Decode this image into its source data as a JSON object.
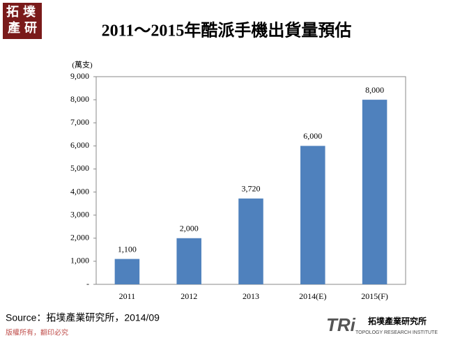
{
  "chart_data": {
    "type": "bar",
    "title": "2011～2015年酷派手機出貨量預估",
    "y_label": "(萬支)",
    "categories": [
      "2011",
      "2012",
      "2013",
      "2014(E)",
      "2015(F)"
    ],
    "values": [
      1100,
      2000,
      3720,
      6000,
      8000
    ],
    "value_labels": [
      "1,100",
      "2,000",
      "3,720",
      "6,000",
      "8,000"
    ],
    "color": "#4f81bd",
    "grid": false,
    "ylim": [
      0,
      9000
    ],
    "yticks": [
      {
        "value": 0,
        "label": "-"
      },
      {
        "value": 1000,
        "label": "1,000"
      },
      {
        "value": 2000,
        "label": "2,000"
      },
      {
        "value": 3000,
        "label": "3,000"
      },
      {
        "value": 4000,
        "label": "4,000"
      },
      {
        "value": 5000,
        "label": "5,000"
      },
      {
        "value": 6000,
        "label": "6,000"
      },
      {
        "value": 7000,
        "label": "7,000"
      },
      {
        "value": 8000,
        "label": "8,000"
      },
      {
        "value": 9000,
        "label": "9,000"
      }
    ]
  },
  "page": {
    "logo_top": [
      "拓",
      "墣",
      "產",
      "研"
    ],
    "source": "Source：拓墣產業研究所，2014/09",
    "copyright": "版權所有，翻印必究",
    "logo_mark": "TRi",
    "logo_name": "拓墣產業研究所",
    "logo_english": "TOPOLOGY RESEARCH INSTITUTE"
  }
}
